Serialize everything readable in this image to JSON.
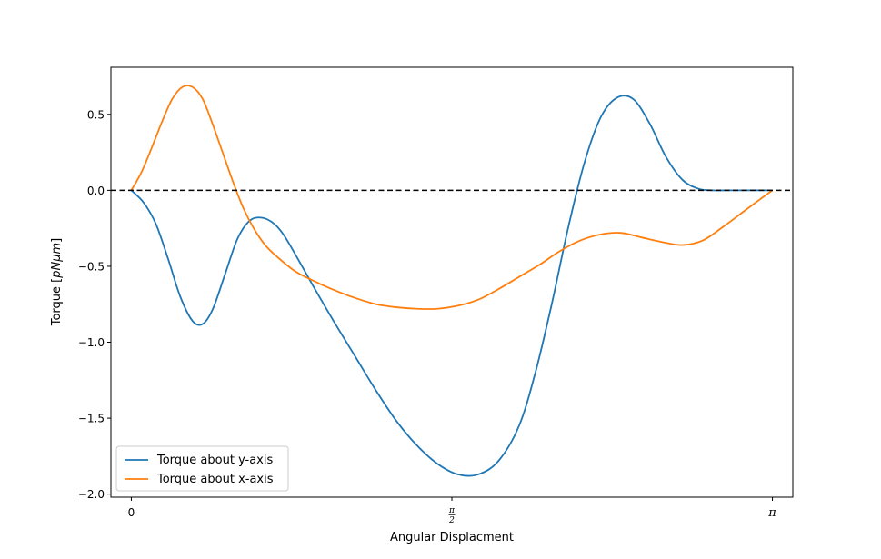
{
  "chart_data": {
    "type": "line",
    "title": "",
    "xlabel": "Angular Displacment",
    "ylabel": "Torque [pNμm]",
    "ylabel_parts": {
      "prefix": "Torque [",
      "unit": "pNμm",
      "suffix": "]"
    },
    "xlim": [
      -0.1,
      3.2416
    ],
    "ylim": [
      -2.02,
      0.81
    ],
    "xticks": [
      {
        "value": 0,
        "label": "0"
      },
      {
        "value": 1.5708,
        "label": "π/2",
        "numerator": "π",
        "denominator": "2"
      },
      {
        "value": 3.1416,
        "label": "π"
      }
    ],
    "yticks": [
      {
        "value": 0.5,
        "label": "0.5"
      },
      {
        "value": 0.0,
        "label": "0.0"
      },
      {
        "value": -0.5,
        "label": "−0.5"
      },
      {
        "value": -1.0,
        "label": "−1.0"
      },
      {
        "value": -1.5,
        "label": "−1.5"
      },
      {
        "value": -2.0,
        "label": "−2.0"
      }
    ],
    "grid": false,
    "legend_position": "lower-left",
    "reference_line": {
      "y": 0,
      "style": "dashed",
      "color": "#000000"
    },
    "series": [
      {
        "name": "Torque about y-axis",
        "color": "#1f77b4",
        "x": [
          0,
          0.06,
          0.12,
          0.18,
          0.24,
          0.3,
          0.35,
          0.4,
          0.46,
          0.52,
          0.58,
          0.64,
          0.7,
          0.75,
          0.82,
          0.9,
          1.0,
          1.1,
          1.2,
          1.3,
          1.4,
          1.5,
          1.6,
          1.7,
          1.8,
          1.9,
          1.98,
          2.06,
          2.14,
          2.22,
          2.3,
          2.38,
          2.46,
          2.54,
          2.62,
          2.7,
          2.78,
          2.85,
          2.92,
          3.0,
          3.06,
          3.1416
        ],
        "y": [
          0,
          -0.08,
          -0.22,
          -0.45,
          -0.7,
          -0.86,
          -0.88,
          -0.78,
          -0.55,
          -0.32,
          -0.2,
          -0.18,
          -0.22,
          -0.3,
          -0.46,
          -0.65,
          -0.88,
          -1.1,
          -1.32,
          -1.52,
          -1.68,
          -1.8,
          -1.87,
          -1.87,
          -1.78,
          -1.55,
          -1.2,
          -0.75,
          -0.25,
          0.18,
          0.48,
          0.61,
          0.6,
          0.44,
          0.22,
          0.07,
          0.01,
          0,
          0,
          0,
          0,
          0
        ]
      },
      {
        "name": "Torque about x-axis",
        "color": "#ff7f0e",
        "x": [
          0,
          0.05,
          0.1,
          0.15,
          0.2,
          0.25,
          0.3,
          0.35,
          0.4,
          0.45,
          0.5,
          0.55,
          0.6,
          0.65,
          0.7,
          0.8,
          0.9,
          1.0,
          1.1,
          1.2,
          1.3,
          1.4,
          1.5,
          1.6,
          1.7,
          1.8,
          1.9,
          2.0,
          2.1,
          2.2,
          2.3,
          2.4,
          2.5,
          2.6,
          2.7,
          2.8,
          2.9,
          3.0,
          3.08,
          3.1416
        ],
        "y": [
          0,
          0.12,
          0.28,
          0.45,
          0.6,
          0.68,
          0.68,
          0.6,
          0.43,
          0.24,
          0.05,
          -0.12,
          -0.25,
          -0.35,
          -0.42,
          -0.53,
          -0.6,
          -0.66,
          -0.71,
          -0.75,
          -0.77,
          -0.78,
          -0.78,
          -0.76,
          -0.72,
          -0.65,
          -0.57,
          -0.49,
          -0.4,
          -0.33,
          -0.29,
          -0.28,
          -0.31,
          -0.34,
          -0.36,
          -0.33,
          -0.24,
          -0.14,
          -0.06,
          0
        ]
      }
    ]
  }
}
